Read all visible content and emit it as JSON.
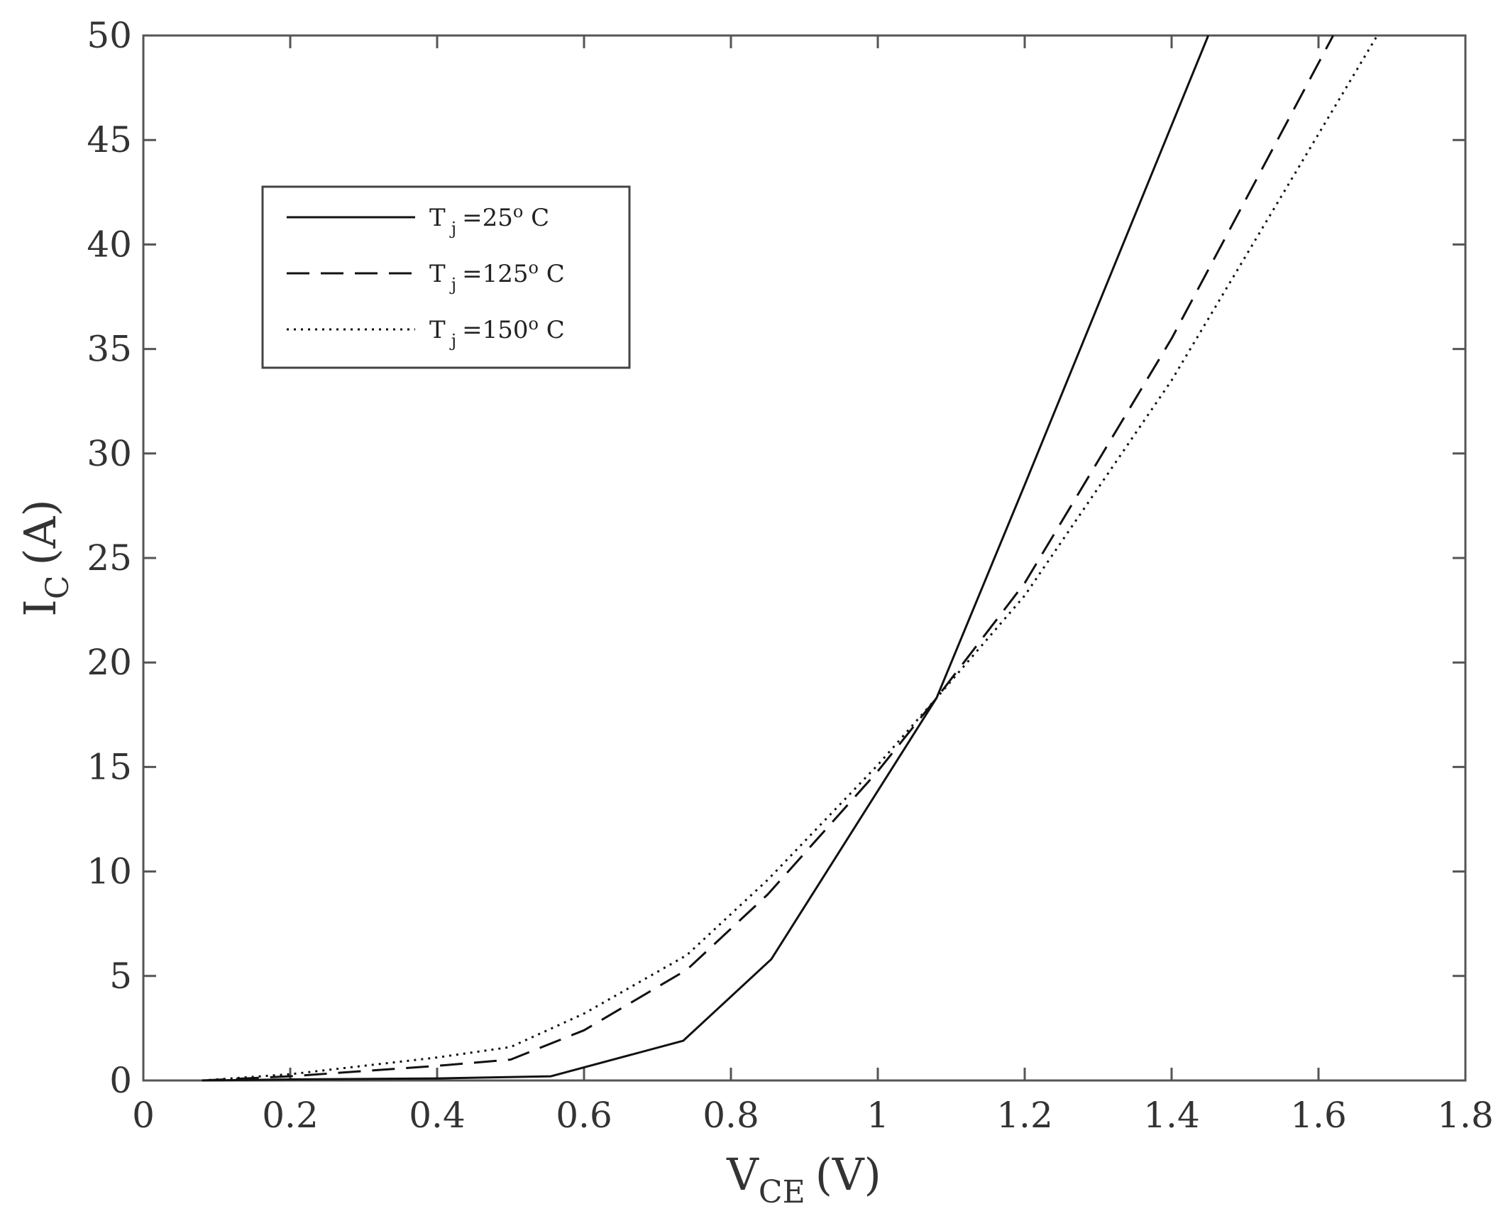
{
  "chart_data": {
    "type": "line",
    "xlabel": "V",
    "xlabel_sub": "CE",
    "xlabel_unit": "(V)",
    "ylabel": "I",
    "ylabel_sub": "C",
    "ylabel_unit": "(A)",
    "xlim": [
      0,
      1.8
    ],
    "ylim": [
      0,
      50
    ],
    "xticks": [
      0,
      0.2,
      0.4,
      0.6,
      0.8,
      1,
      1.2,
      1.4,
      1.6,
      1.8
    ],
    "xtick_labels": [
      "0",
      "0.2",
      "0.4",
      "0.6",
      "0.8",
      "1",
      "1.2",
      "1.4",
      "1.6",
      "1.8"
    ],
    "yticks": [
      0,
      5,
      10,
      15,
      20,
      25,
      30,
      35,
      40,
      45,
      50
    ],
    "ytick_labels": [
      "0",
      "5",
      "10",
      "15",
      "20",
      "25",
      "30",
      "35",
      "40",
      "45",
      "50"
    ],
    "grid": false,
    "legend_position": "upper-left",
    "series": [
      {
        "name": "T j =25° C",
        "legend_main": "T",
        "legend_sub": "j",
        "legend_rest": "=25",
        "legend_sup": "o",
        "legend_end": " C",
        "line_style": "solid",
        "x": [
          0.08,
          0.2,
          0.4,
          0.555,
          0.735,
          0.855,
          1.08,
          1.2,
          1.45
        ],
        "y": [
          0,
          0.05,
          0.1,
          0.2,
          1.9,
          5.8,
          18.3,
          28.5,
          50
        ]
      },
      {
        "name": "T j =125° C",
        "legend_main": "T",
        "legend_sub": "j",
        "legend_rest": "=125",
        "legend_sup": "o",
        "legend_end": " C",
        "line_style": "dashed",
        "x": [
          0.08,
          0.2,
          0.4,
          0.5,
          0.6,
          0.74,
          0.85,
          1.0,
          1.08,
          1.2,
          1.4,
          1.62
        ],
        "y": [
          0,
          0.2,
          0.7,
          1.0,
          2.4,
          5.3,
          8.9,
          14.8,
          18.3,
          23.8,
          35.5,
          50
        ]
      },
      {
        "name": "T j =150° C",
        "legend_main": "T",
        "legend_sub": "j",
        "legend_rest": "=150",
        "legend_sup": "o",
        "legend_end": " C",
        "line_style": "dotted",
        "x": [
          0.08,
          0.2,
          0.4,
          0.5,
          0.6,
          0.74,
          0.85,
          1.0,
          1.08,
          1.2,
          1.4,
          1.68
        ],
        "y": [
          0,
          0.3,
          1.1,
          1.6,
          3.2,
          6.0,
          9.6,
          15.1,
          18.3,
          23.2,
          33.5,
          50
        ]
      }
    ]
  }
}
